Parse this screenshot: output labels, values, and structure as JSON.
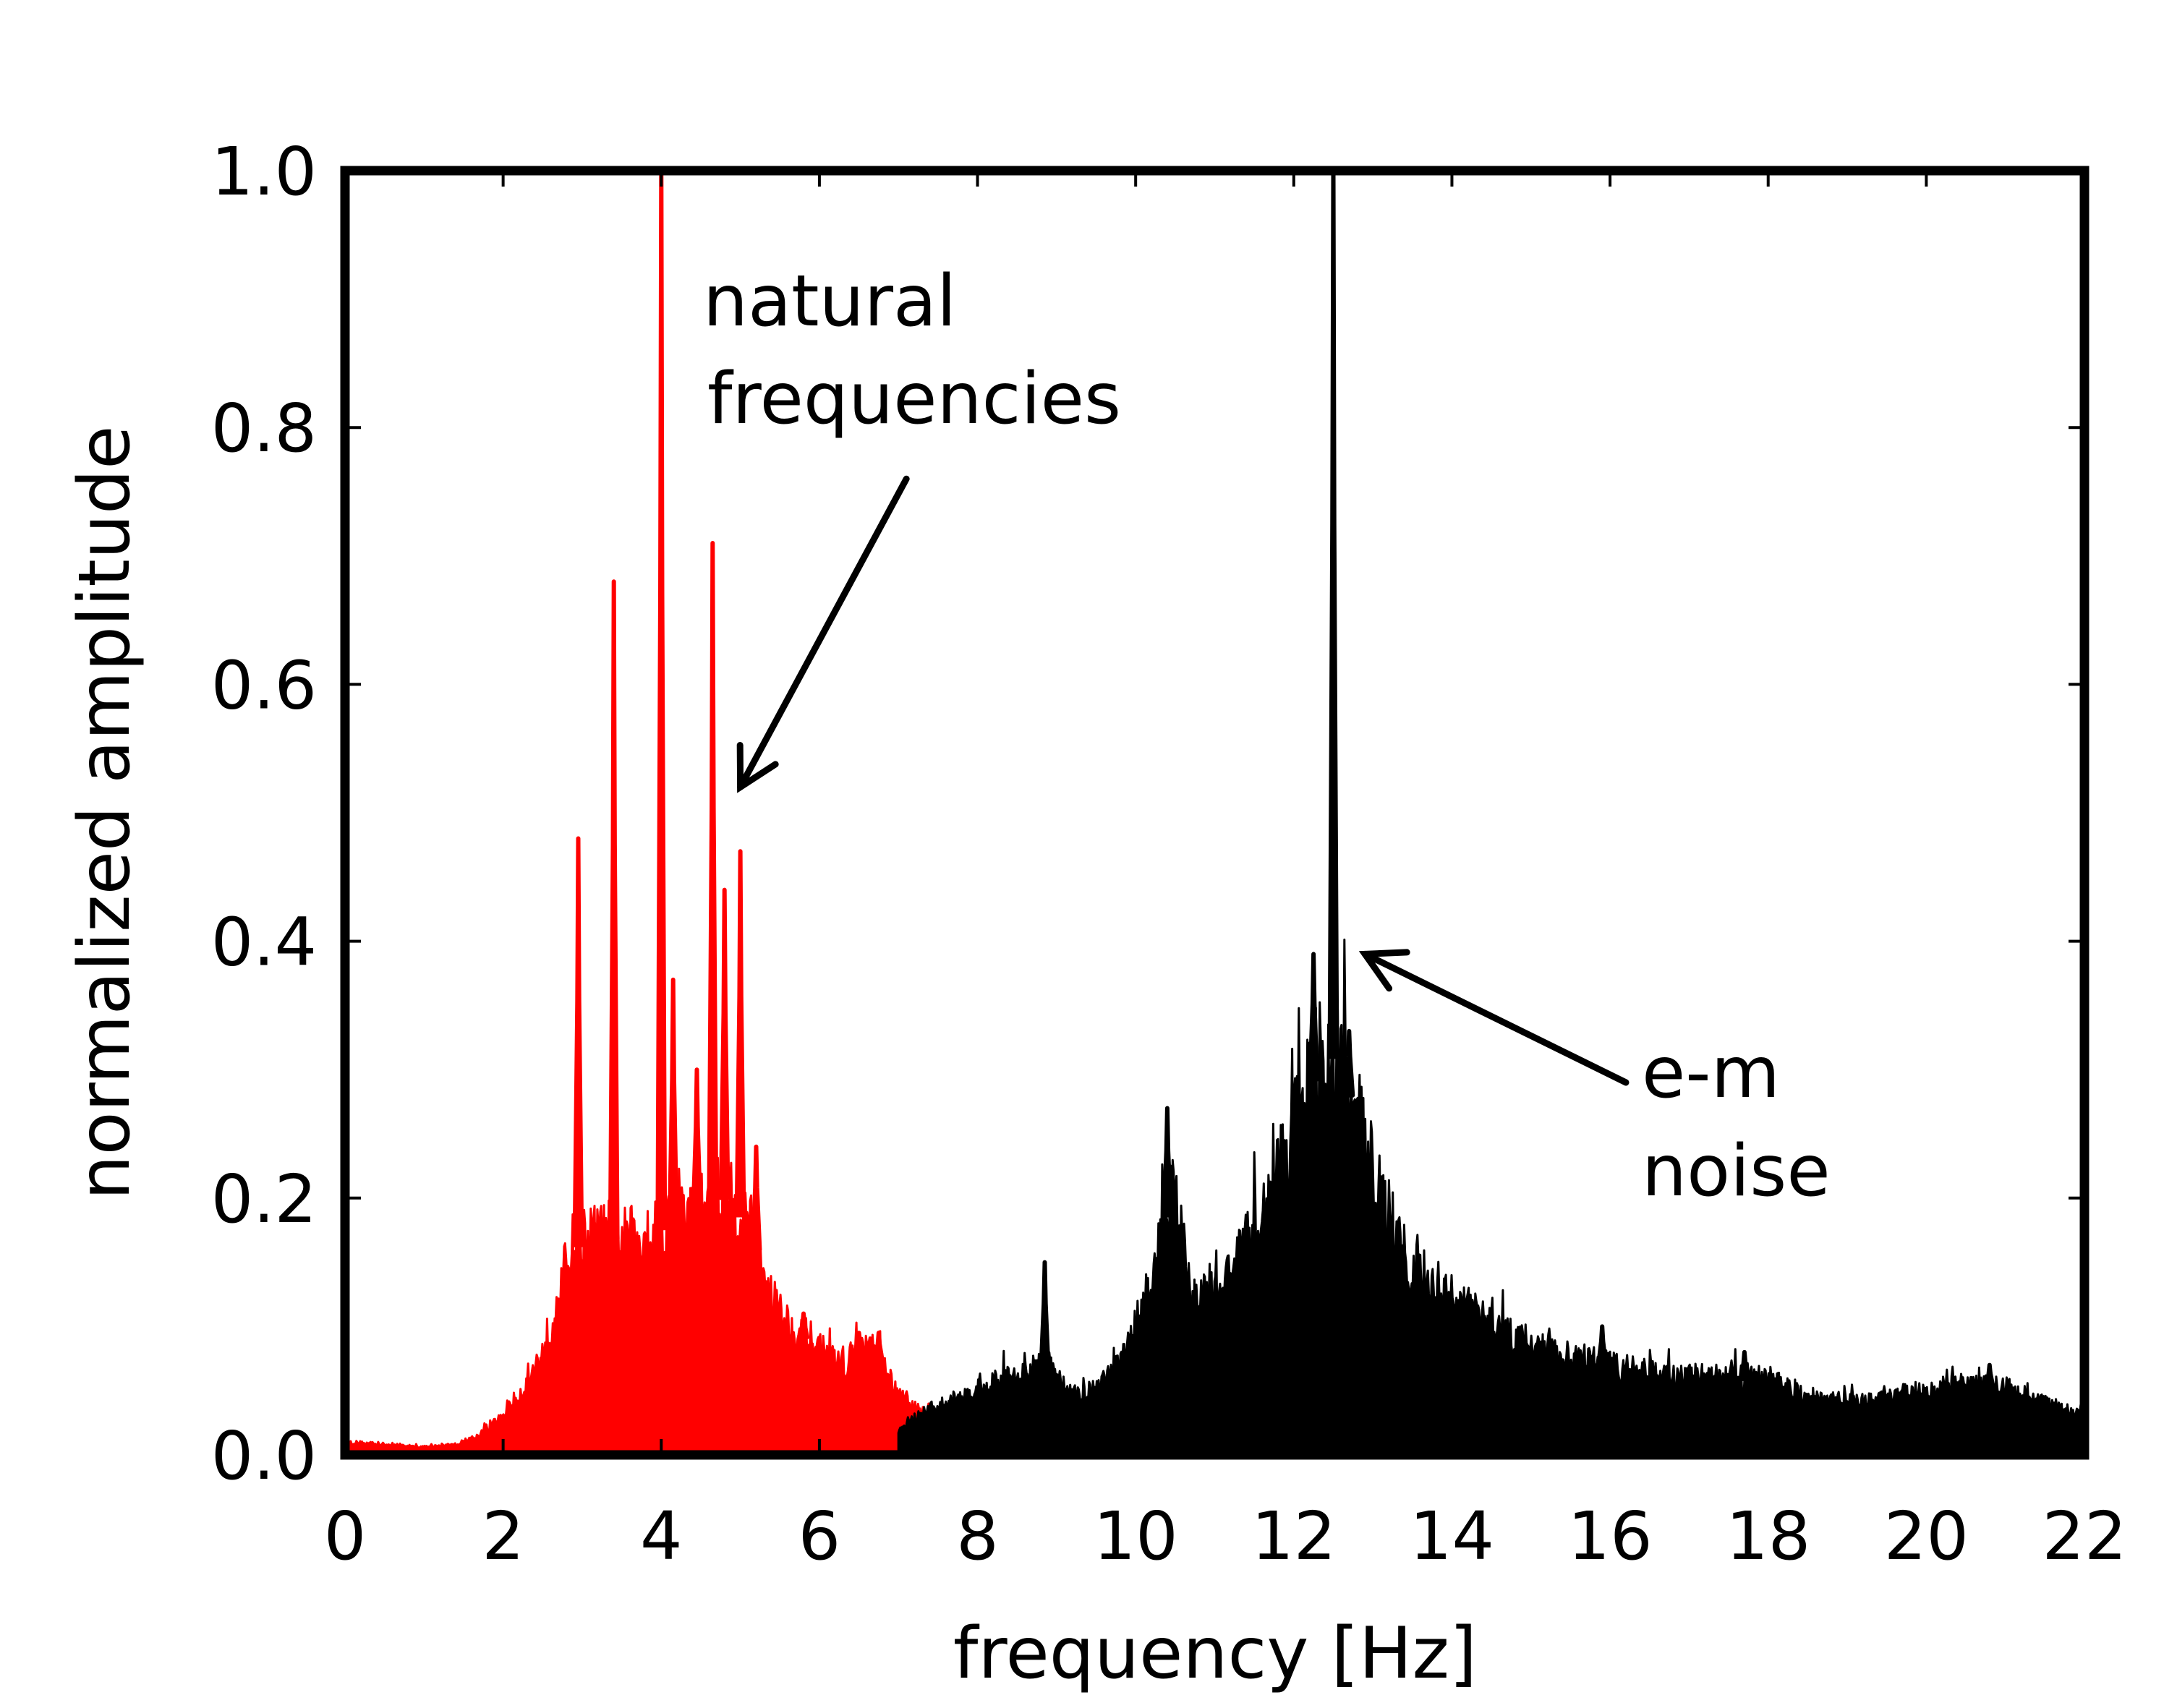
{
  "chart_data": {
    "type": "line",
    "title": "",
    "xlabel": "frequency [Hz]",
    "ylabel": "normalized amplitude",
    "xlim": [
      0,
      22
    ],
    "ylim": [
      0,
      1.0
    ],
    "xticks": [
      "0",
      "2",
      "4",
      "6",
      "8",
      "10",
      "12",
      "14",
      "16",
      "18",
      "20",
      "22"
    ],
    "yticks": [
      "0.0",
      "0.2",
      "0.4",
      "0.6",
      "0.8",
      "1.0"
    ],
    "grid": false,
    "colors": {
      "natural": "#ff0000",
      "noise": "#000000",
      "axes": "#000000"
    },
    "annotations": [
      {
        "lines": [
          "natural",
          "frequencies"
        ],
        "arrow_target": {
          "x": 5.0,
          "y": 0.52
        },
        "arrow_tail": {
          "x": 7.1,
          "y": 0.76
        }
      },
      {
        "lines": [
          "e-m",
          "noise"
        ],
        "arrow_target": {
          "x": 12.9,
          "y": 0.39
        },
        "arrow_tail": {
          "x": 16.2,
          "y": 0.29
        }
      }
    ],
    "series": [
      {
        "name": "natural frequencies",
        "color": "#ff0000",
        "baseline": [
          [
            0.0,
            0.01
          ],
          [
            0.5,
            0.008
          ],
          [
            1.0,
            0.006
          ],
          [
            1.4,
            0.008
          ],
          [
            1.7,
            0.015
          ],
          [
            2.0,
            0.03
          ],
          [
            2.3,
            0.055
          ],
          [
            2.5,
            0.08
          ],
          [
            2.7,
            0.12
          ],
          [
            2.85,
            0.16
          ],
          [
            3.0,
            0.165
          ],
          [
            3.3,
            0.17
          ],
          [
            3.6,
            0.165
          ],
          [
            3.9,
            0.175
          ],
          [
            4.2,
            0.18
          ],
          [
            4.5,
            0.19
          ],
          [
            4.8,
            0.2
          ],
          [
            5.1,
            0.18
          ],
          [
            5.3,
            0.14
          ],
          [
            5.5,
            0.11
          ],
          [
            5.7,
            0.095
          ],
          [
            6.0,
            0.085
          ],
          [
            6.2,
            0.07
          ],
          [
            6.4,
            0.075
          ],
          [
            6.6,
            0.085
          ],
          [
            6.8,
            0.07
          ],
          [
            7.0,
            0.045
          ],
          [
            7.3,
            0.035
          ],
          [
            7.7,
            0.03
          ],
          [
            8.0,
            0.025
          ],
          [
            8.5,
            0.02
          ],
          [
            9.0,
            0.012
          ],
          [
            9.5,
            0.008
          ],
          [
            10.0,
            0.006
          ],
          [
            10.5,
            0.005
          ]
        ],
        "peaks": [
          {
            "x": 2.95,
            "y": 0.48
          },
          {
            "x": 3.15,
            "y": 0.18
          },
          {
            "x": 3.4,
            "y": 0.68
          },
          {
            "x": 4.0,
            "y": 1.0
          },
          {
            "x": 4.15,
            "y": 0.37
          },
          {
            "x": 4.45,
            "y": 0.3
          },
          {
            "x": 4.65,
            "y": 0.71
          },
          {
            "x": 4.8,
            "y": 0.44
          },
          {
            "x": 5.0,
            "y": 0.47
          },
          {
            "x": 5.2,
            "y": 0.24
          },
          {
            "x": 5.8,
            "y": 0.11
          },
          {
            "x": 6.5,
            "y": 0.095
          },
          {
            "x": 6.75,
            "y": 0.095
          }
        ]
      },
      {
        "name": "e-m noise",
        "color": "#000000",
        "baseline": [
          [
            7.0,
            0.02
          ],
          [
            7.4,
            0.035
          ],
          [
            7.8,
            0.045
          ],
          [
            8.2,
            0.055
          ],
          [
            8.6,
            0.065
          ],
          [
            8.9,
            0.07
          ],
          [
            9.2,
            0.045
          ],
          [
            9.5,
            0.05
          ],
          [
            9.8,
            0.07
          ],
          [
            10.0,
            0.1
          ],
          [
            10.2,
            0.13
          ],
          [
            10.35,
            0.18
          ],
          [
            10.5,
            0.2
          ],
          [
            10.7,
            0.12
          ],
          [
            10.9,
            0.12
          ],
          [
            11.2,
            0.14
          ],
          [
            11.5,
            0.17
          ],
          [
            11.8,
            0.22
          ],
          [
            12.1,
            0.27
          ],
          [
            12.3,
            0.3
          ],
          [
            12.5,
            0.31
          ],
          [
            12.7,
            0.28
          ],
          [
            12.9,
            0.24
          ],
          [
            13.1,
            0.2
          ],
          [
            13.3,
            0.17
          ],
          [
            13.6,
            0.14
          ],
          [
            14.0,
            0.12
          ],
          [
            14.5,
            0.1
          ],
          [
            15.0,
            0.085
          ],
          [
            15.5,
            0.075
          ],
          [
            16.0,
            0.07
          ],
          [
            16.4,
            0.065
          ],
          [
            17.0,
            0.06
          ],
          [
            17.5,
            0.06
          ],
          [
            18.0,
            0.058
          ],
          [
            18.5,
            0.045
          ],
          [
            19.0,
            0.042
          ],
          [
            19.5,
            0.045
          ],
          [
            20.0,
            0.05
          ],
          [
            20.5,
            0.055
          ],
          [
            21.0,
            0.052
          ],
          [
            21.5,
            0.04
          ],
          [
            22.0,
            0.03
          ]
        ],
        "peaks": [
          {
            "x": 8.85,
            "y": 0.15
          },
          {
            "x": 10.4,
            "y": 0.27
          },
          {
            "x": 12.25,
            "y": 0.39
          },
          {
            "x": 12.5,
            "y": 1.0
          },
          {
            "x": 12.7,
            "y": 0.33
          },
          {
            "x": 14.1,
            "y": 0.12
          },
          {
            "x": 15.9,
            "y": 0.1
          },
          {
            "x": 17.7,
            "y": 0.08
          },
          {
            "x": 20.8,
            "y": 0.07
          }
        ]
      }
    ]
  }
}
